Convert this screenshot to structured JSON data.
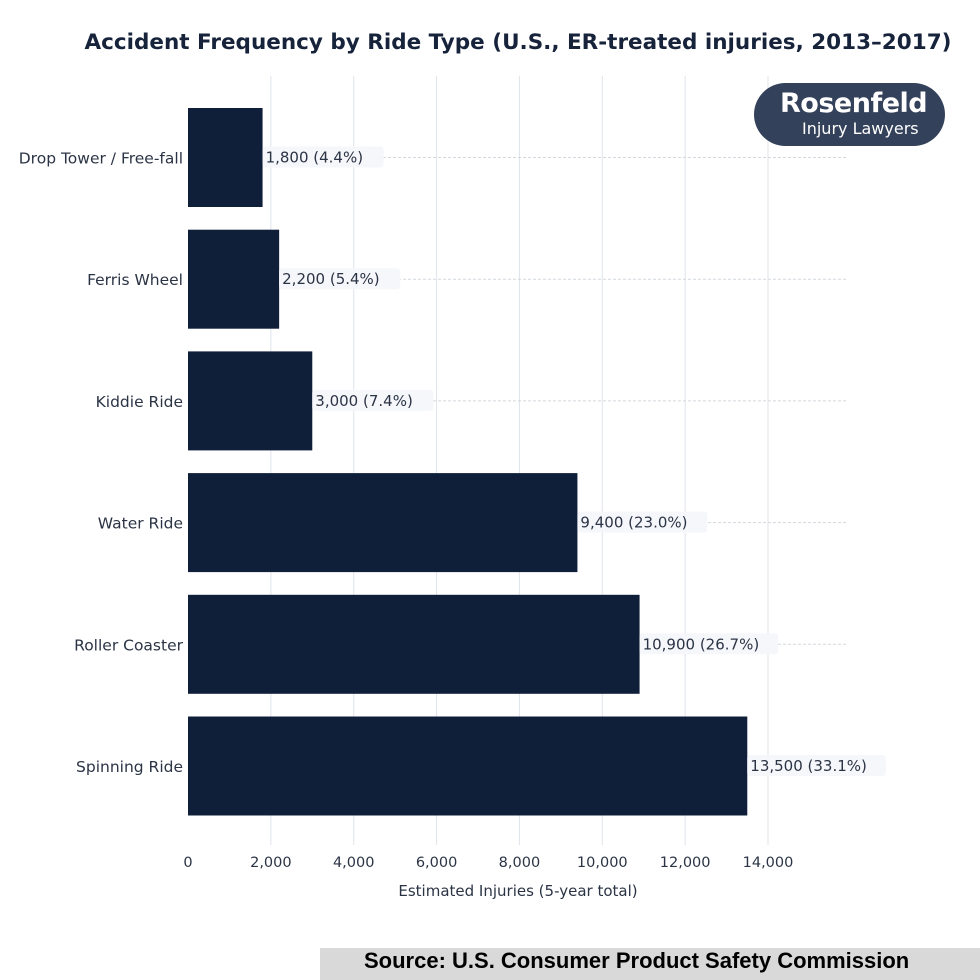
{
  "chart_data": {
    "type": "bar",
    "orientation": "horizontal",
    "title": "Accident Frequency by Ride Type (U.S., ER-treated injuries, 2013–2017)",
    "xlabel": "Estimated Injuries (5-year total)",
    "ylabel": "",
    "categories": [
      "Drop Tower / Free-fall",
      "Ferris Wheel",
      "Kiddie Ride",
      "Water Ride",
      "Roller Coaster",
      "Spinning Ride"
    ],
    "values": [
      1800,
      2200,
      3000,
      9400,
      10900,
      13500
    ],
    "value_labels": [
      "1,800  (4.4%)",
      "2,200  (5.4%)",
      "3,000  (7.4%)",
      "9,400  (23.0%)",
      "10,900  (26.7%)",
      "13,500  (33.1%)"
    ],
    "xticks": [
      0,
      2000,
      4000,
      6000,
      8000,
      10000,
      12000,
      14000
    ],
    "xtick_labels": [
      "0",
      "2,000",
      "4,000",
      "6,000",
      "8,000",
      "10,000",
      "12,000",
      "14,000"
    ],
    "xlim": [
      0,
      16000
    ],
    "grid": "vertical",
    "bar_color": "#0f1f3a"
  },
  "logo": {
    "brand": "Rosenfeld",
    "sub": "Injury Lawyers"
  },
  "source": "Source: U.S. Consumer Product Safety Commission"
}
